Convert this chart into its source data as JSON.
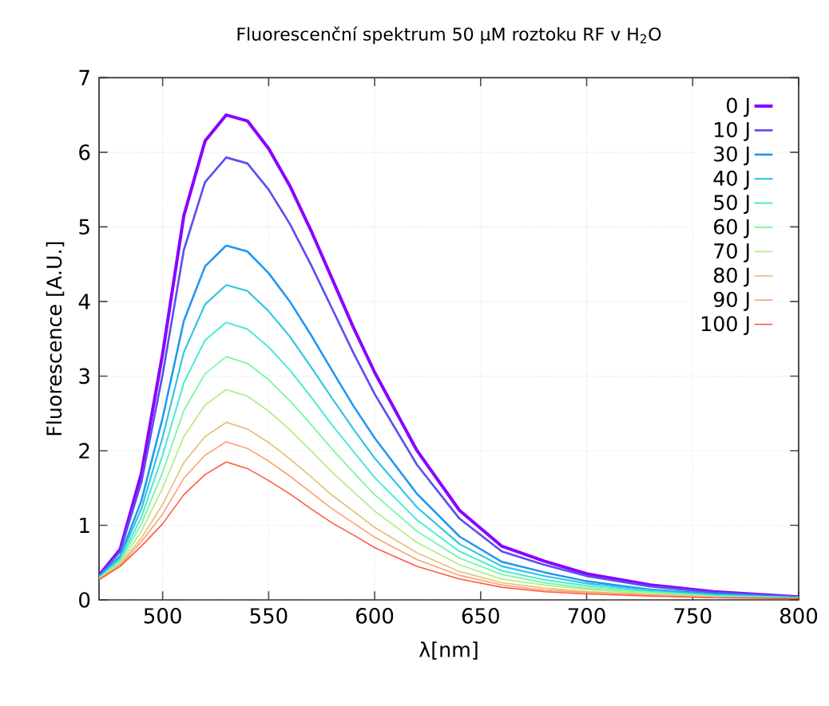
{
  "chart_data": {
    "type": "line",
    "title": "Fluorescenční spektrum 50 µM roztoku RF v H$_{2}$O",
    "xlabel": "λ[nm]",
    "ylabel": "Fluorescence [A.U.]",
    "x": [
      470,
      480,
      490,
      500,
      510,
      520,
      530,
      540,
      550,
      560,
      570,
      580,
      590,
      600,
      620,
      640,
      660,
      680,
      700,
      730,
      760,
      800
    ],
    "xlim": [
      470,
      800
    ],
    "ylim": [
      0,
      7
    ],
    "xticks": [
      500,
      550,
      600,
      650,
      700,
      750,
      800
    ],
    "yticks": [
      0,
      1,
      2,
      3,
      4,
      5,
      6,
      7
    ],
    "grid": true,
    "legend": "top right",
    "line_style": "solid",
    "marker": "none",
    "series": [
      {
        "name": "0 J",
        "color": "#8a00ff",
        "values": [
          0.33,
          0.68,
          1.7,
          3.3,
          5.15,
          6.15,
          6.5,
          6.42,
          6.05,
          5.55,
          4.95,
          4.3,
          3.65,
          3.05,
          2.0,
          1.2,
          0.72,
          0.52,
          0.35,
          0.2,
          0.11,
          0.04
        ]
      },
      {
        "name": "10 J",
        "color": "#5a50f2",
        "values": [
          0.32,
          0.65,
          1.58,
          3.02,
          4.69,
          5.6,
          5.93,
          5.85,
          5.5,
          5.04,
          4.49,
          3.9,
          3.31,
          2.76,
          1.81,
          1.09,
          0.65,
          0.47,
          0.32,
          0.18,
          0.1,
          0.04
        ]
      },
      {
        "name": "30 J",
        "color": "#2196f0",
        "values": [
          0.31,
          0.59,
          1.33,
          2.44,
          3.74,
          4.47,
          4.75,
          4.67,
          4.38,
          4.0,
          3.55,
          3.07,
          2.6,
          2.17,
          1.42,
          0.85,
          0.51,
          0.37,
          0.25,
          0.14,
          0.08,
          0.03
        ]
      },
      {
        "name": "40 J",
        "color": "#2ec4e2",
        "values": [
          0.3,
          0.57,
          1.22,
          2.18,
          3.32,
          3.96,
          4.22,
          4.14,
          3.87,
          3.53,
          3.12,
          2.7,
          2.29,
          1.9,
          1.24,
          0.75,
          0.45,
          0.32,
          0.22,
          0.13,
          0.07,
          0.03
        ]
      },
      {
        "name": "50 J",
        "color": "#48ecd0",
        "values": [
          0.29,
          0.54,
          1.11,
          1.94,
          2.91,
          3.48,
          3.72,
          3.63,
          3.39,
          3.08,
          2.72,
          2.34,
          1.99,
          1.64,
          1.07,
          0.65,
          0.39,
          0.27,
          0.19,
          0.11,
          0.06,
          0.03
        ]
      },
      {
        "name": "60 J",
        "color": "#80f4a8",
        "values": [
          0.29,
          0.52,
          1.02,
          1.71,
          2.54,
          3.03,
          3.26,
          3.17,
          2.95,
          2.67,
          2.35,
          2.02,
          1.71,
          1.41,
          0.92,
          0.56,
          0.34,
          0.23,
          0.16,
          0.1,
          0.05,
          0.02
        ]
      },
      {
        "name": "70 J",
        "color": "#b4ec88",
        "values": [
          0.28,
          0.5,
          0.92,
          1.5,
          2.19,
          2.61,
          2.82,
          2.73,
          2.53,
          2.28,
          2.0,
          1.71,
          1.45,
          1.19,
          0.77,
          0.47,
          0.28,
          0.2,
          0.14,
          0.08,
          0.05,
          null
        ]
      },
      {
        "name": "80 J",
        "color": "#e2c47a",
        "values": [
          0.28,
          0.48,
          0.83,
          1.28,
          1.84,
          2.19,
          2.38,
          2.29,
          2.11,
          1.89,
          1.65,
          1.4,
          1.19,
          0.97,
          0.63,
          0.38,
          0.23,
          0.16,
          0.11,
          0.07,
          0.04,
          null
        ]
      },
      {
        "name": "90 J",
        "color": "#ffa070",
        "values": [
          0.27,
          0.46,
          0.78,
          1.15,
          1.63,
          1.94,
          2.12,
          2.03,
          1.86,
          1.66,
          1.44,
          1.22,
          1.03,
          0.84,
          0.54,
          0.33,
          0.2,
          0.13,
          0.1,
          0.06,
          0.03,
          0.02
        ]
      },
      {
        "name": "100 J",
        "color": "#ff5a40",
        "values": [
          0.27,
          0.45,
          0.72,
          1.02,
          1.41,
          1.68,
          1.85,
          1.76,
          1.6,
          1.42,
          1.22,
          1.03,
          0.87,
          0.7,
          0.45,
          0.28,
          0.17,
          0.11,
          0.08,
          0.05,
          0.03,
          0.02
        ]
      }
    ]
  }
}
